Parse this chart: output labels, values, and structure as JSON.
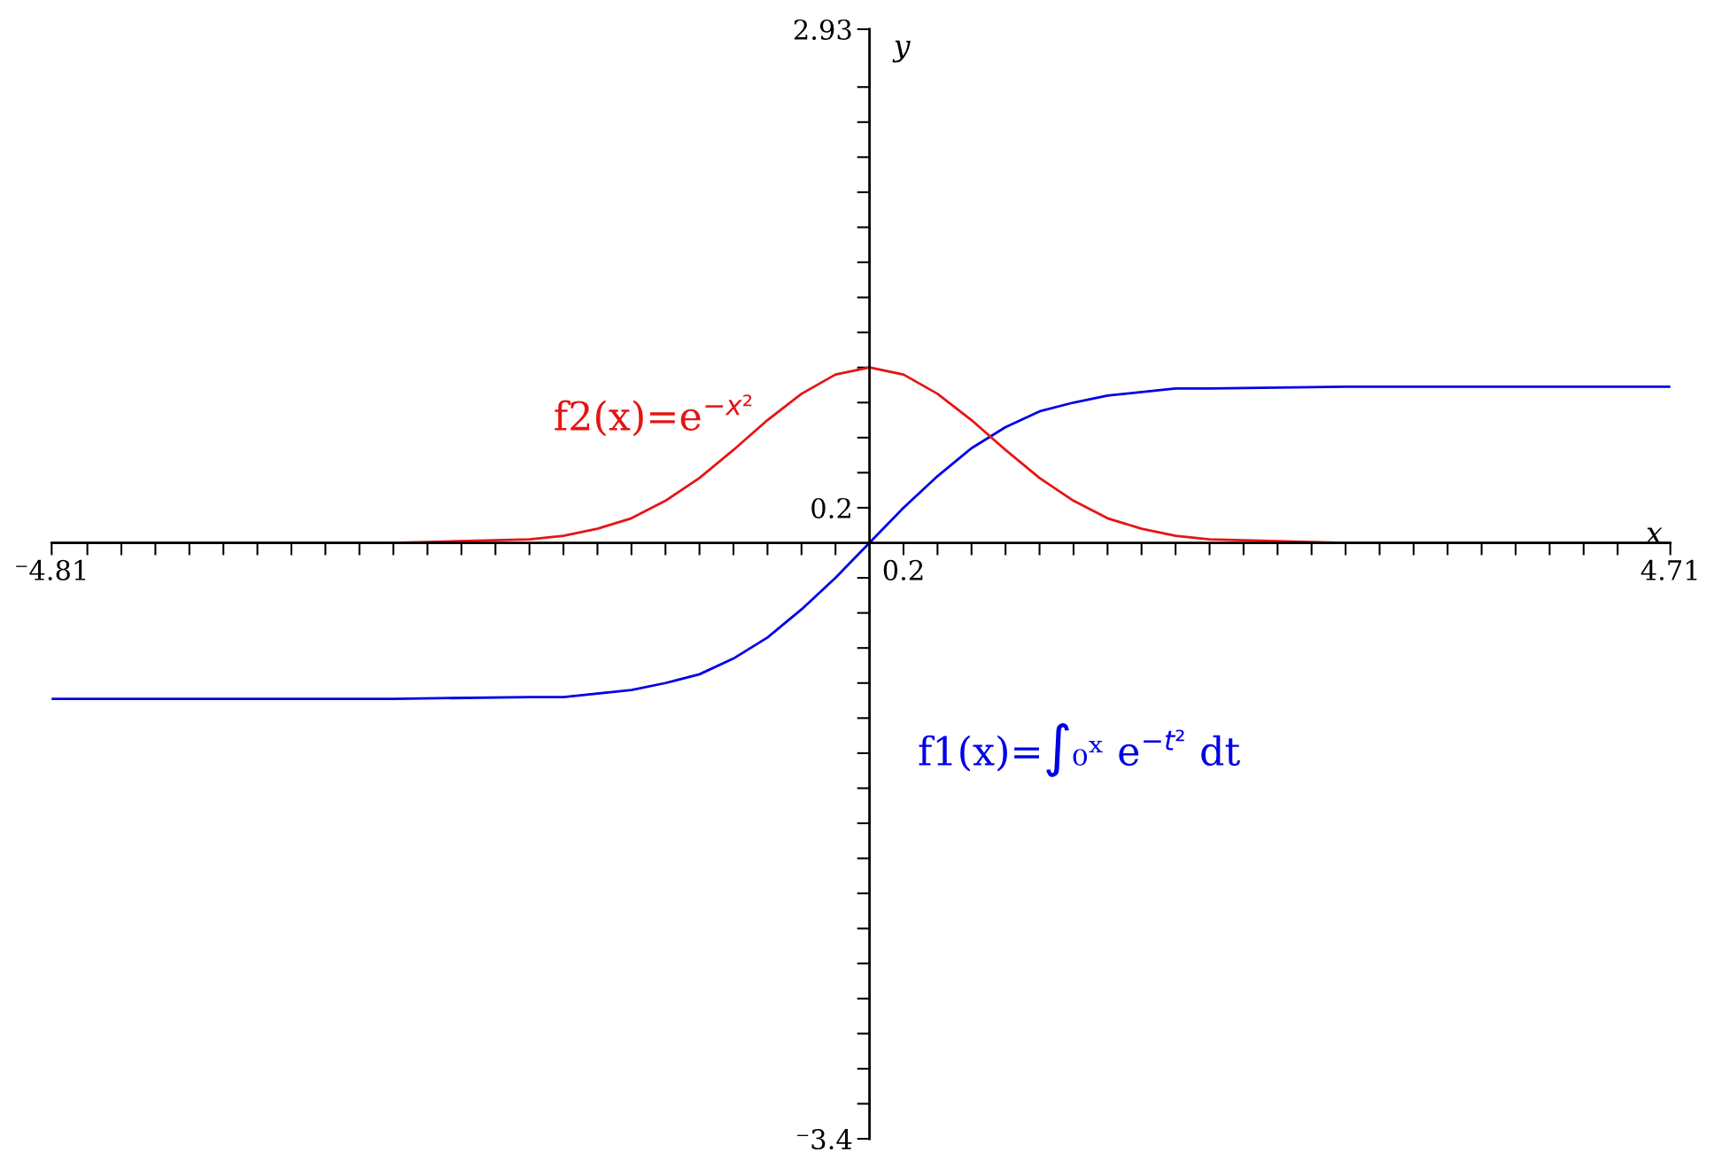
{
  "chart_data": {
    "type": "line",
    "xlabel": "x",
    "ylabel": "y",
    "xlim": [
      -4.81,
      4.71
    ],
    "ylim": [
      -3.4,
      2.93
    ],
    "xticks": [
      {
        "value": -4.81,
        "label": "⁻4.81"
      },
      {
        "value": -4.6,
        "label": null
      },
      {
        "value": -4.4,
        "label": null
      },
      {
        "value": -4.2,
        "label": null
      },
      {
        "value": -4.0,
        "label": null
      },
      {
        "value": -3.8,
        "label": null
      },
      {
        "value": -3.6,
        "label": null
      },
      {
        "value": -3.4,
        "label": null
      },
      {
        "value": -3.2,
        "label": null
      },
      {
        "value": -3.0,
        "label": null
      },
      {
        "value": -2.8,
        "label": null
      },
      {
        "value": -2.6,
        "label": null
      },
      {
        "value": -2.4,
        "label": null
      },
      {
        "value": -2.2,
        "label": null
      },
      {
        "value": -2.0,
        "label": null
      },
      {
        "value": -1.8,
        "label": null
      },
      {
        "value": -1.6,
        "label": null
      },
      {
        "value": -1.4,
        "label": null
      },
      {
        "value": -1.2,
        "label": null
      },
      {
        "value": -1.0,
        "label": null
      },
      {
        "value": -0.8,
        "label": null
      },
      {
        "value": -0.6,
        "label": null
      },
      {
        "value": -0.4,
        "label": null
      },
      {
        "value": -0.2,
        "label": null
      },
      0.2,
      {
        "value": 0.4,
        "label": null
      },
      {
        "value": 0.6,
        "label": null
      },
      {
        "value": 0.8,
        "label": null
      },
      {
        "value": 1.0,
        "label": null
      },
      {
        "value": 1.2,
        "label": null
      },
      {
        "value": 1.4,
        "label": null
      },
      {
        "value": 1.6,
        "label": null
      },
      {
        "value": 1.8,
        "label": null
      },
      {
        "value": 2.0,
        "label": null
      },
      {
        "value": 2.2,
        "label": null
      },
      {
        "value": 2.4,
        "label": null
      },
      {
        "value": 2.6,
        "label": null
      },
      {
        "value": 2.8,
        "label": null
      },
      {
        "value": 3.0,
        "label": null
      },
      {
        "value": 3.2,
        "label": null
      },
      {
        "value": 3.4,
        "label": null
      },
      {
        "value": 3.6,
        "label": null
      },
      {
        "value": 3.8,
        "label": null
      },
      {
        "value": 4.0,
        "label": null
      },
      {
        "value": 4.2,
        "label": null
      },
      {
        "value": 4.4,
        "label": null
      },
      {
        "value": 4.71,
        "label": "4.71"
      }
    ],
    "yticks": [
      {
        "value": -3.4,
        "label": "⁻3.4"
      },
      {
        "value": -3.2,
        "label": null
      },
      {
        "value": -3.0,
        "label": null
      },
      {
        "value": -2.8,
        "label": null
      },
      {
        "value": -2.6,
        "label": null
      },
      {
        "value": -2.4,
        "label": null
      },
      {
        "value": -2.2,
        "label": null
      },
      {
        "value": -2.0,
        "label": null
      },
      {
        "value": -1.8,
        "label": null
      },
      {
        "value": -1.6,
        "label": null
      },
      {
        "value": -1.4,
        "label": null
      },
      {
        "value": -1.2,
        "label": null
      },
      {
        "value": -1.0,
        "label": null
      },
      {
        "value": -0.8,
        "label": null
      },
      {
        "value": -0.6,
        "label": null
      },
      {
        "value": -0.4,
        "label": null
      },
      {
        "value": -0.2,
        "label": null
      },
      0.2,
      {
        "value": 0.4,
        "label": null
      },
      {
        "value": 0.6,
        "label": null
      },
      {
        "value": 0.8,
        "label": null
      },
      {
        "value": 1.0,
        "label": null
      },
      {
        "value": 1.2,
        "label": null
      },
      {
        "value": 1.4,
        "label": null
      },
      {
        "value": 1.6,
        "label": null
      },
      {
        "value": 1.8,
        "label": null
      },
      {
        "value": 2.0,
        "label": null
      },
      {
        "value": 2.2,
        "label": null
      },
      {
        "value": 2.4,
        "label": null
      },
      {
        "value": 2.6,
        "label": null
      },
      {
        "value": 2.93,
        "label": "2.93"
      }
    ],
    "grid": false,
    "legend": false,
    "marker": "none",
    "line_style": "solid",
    "series": [
      {
        "color": "#0000e6",
        "x": [
          -4.81,
          -2.8,
          -2.0,
          -1.8,
          -1.6,
          -1.4,
          -1.2,
          -1.0,
          -0.8,
          -0.6,
          -0.4,
          -0.2,
          0.0,
          0.2,
          0.4,
          0.6,
          0.8,
          1.0,
          1.2,
          1.4,
          1.6,
          1.8,
          2.0,
          2.8,
          4.71
        ],
        "values": [
          -0.89,
          -0.89,
          -0.88,
          -0.88,
          -0.86,
          -0.84,
          -0.8,
          -0.75,
          -0.66,
          -0.54,
          -0.38,
          -0.2,
          0.0,
          0.2,
          0.38,
          0.54,
          0.66,
          0.75,
          0.8,
          0.84,
          0.86,
          0.88,
          0.88,
          0.89,
          0.89
        ]
      },
      {
        "color": "#e61414",
        "x": [
          -4.81,
          -2.8,
          -2.0,
          -1.8,
          -1.6,
          -1.4,
          -1.2,
          -1.0,
          -0.8,
          -0.6,
          -0.4,
          -0.2,
          0.0,
          0.2,
          0.4,
          0.6,
          0.8,
          1.0,
          1.2,
          1.4,
          1.6,
          1.8,
          2.0,
          2.8,
          4.71
        ],
        "values": [
          0.0,
          0.0,
          0.02,
          0.04,
          0.08,
          0.14,
          0.24,
          0.37,
          0.53,
          0.7,
          0.85,
          0.96,
          1.0,
          0.96,
          0.85,
          0.7,
          0.53,
          0.37,
          0.24,
          0.14,
          0.08,
          0.04,
          0.02,
          0.0,
          0.0
        ]
      }
    ],
    "annotations": [
      "f2(x)=e$^{−x²}$",
      "f1(x)=∫₀ˣ e$^{−t²}$ dt"
    ]
  }
}
